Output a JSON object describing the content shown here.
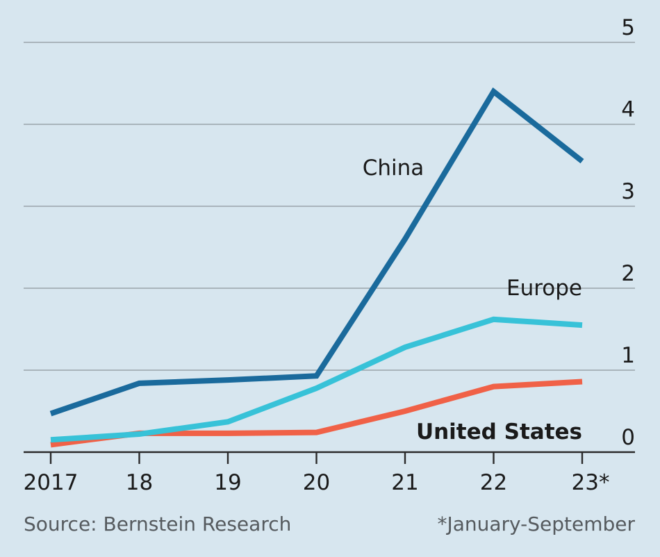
{
  "chart_data": {
    "type": "line",
    "x": [
      "2017",
      "18",
      "19",
      "20",
      "21",
      "22",
      "23*"
    ],
    "ylim": [
      0,
      5
    ],
    "yticks": [
      "0",
      "1",
      "2",
      "3",
      "4",
      "5"
    ],
    "grid": true,
    "series": [
      {
        "name": "China",
        "color": "#1a6a9c",
        "values": [
          0.47,
          0.84,
          0.88,
          0.93,
          2.6,
          4.4,
          3.55
        ]
      },
      {
        "name": "Europe",
        "color": "#37c2d8",
        "values": [
          0.15,
          0.22,
          0.37,
          0.78,
          1.28,
          1.62,
          1.55
        ]
      },
      {
        "name": "United States",
        "color": "#f06147",
        "values": [
          0.09,
          0.23,
          0.23,
          0.24,
          0.5,
          0.8,
          0.86
        ]
      }
    ]
  },
  "source": "Source: Bernstein Research",
  "footnote": "*January-September"
}
